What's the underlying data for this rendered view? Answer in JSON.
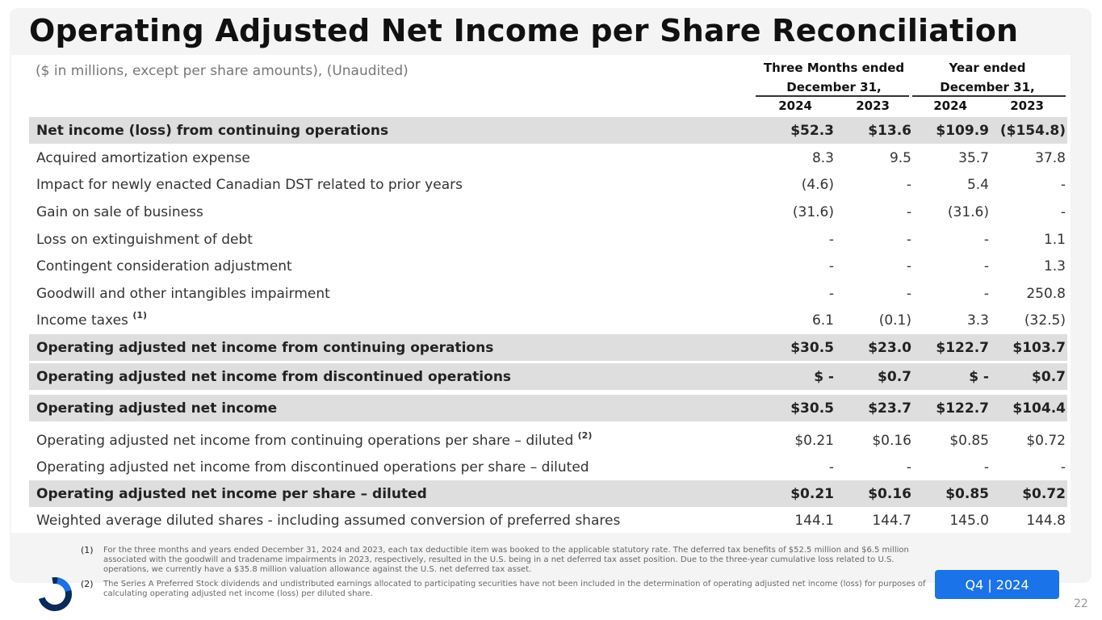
{
  "slide": {
    "title": "Operating Adjusted Net Income per Share Reconciliation",
    "subtitle": "($ in millions, except per share amounts), (Unaudited)",
    "badge": "Q4 | 2024",
    "page_number": "22"
  },
  "table": {
    "group_headers": [
      {
        "line1": "Three Months ended",
        "line2": "December 31,"
      },
      {
        "line1": "Year ended",
        "line2": "December 31,"
      }
    ],
    "years": [
      "2024",
      "2023",
      "2024",
      "2023"
    ],
    "rows": [
      {
        "label": "Net income (loss) from continuing operations",
        "sup": "",
        "values": [
          "$52.3",
          "$13.6",
          "$109.9",
          "($154.8)"
        ],
        "highlight": true
      },
      {
        "label": "Acquired amortization expense",
        "sup": "",
        "values": [
          "8.3",
          "9.5",
          "35.7",
          "37.8"
        ],
        "highlight": false
      },
      {
        "label": "Impact for newly enacted Canadian DST related to prior years",
        "sup": "",
        "values": [
          "(4.6)",
          "-",
          "5.4",
          "-"
        ],
        "highlight": false
      },
      {
        "label": "Gain on sale of business",
        "sup": "",
        "values": [
          "(31.6)",
          "-",
          "(31.6)",
          "-"
        ],
        "highlight": false
      },
      {
        "label": "Loss on extinguishment of debt",
        "sup": "",
        "values": [
          "-",
          "-",
          "-",
          "1.1"
        ],
        "highlight": false
      },
      {
        "label": "Contingent consideration adjustment",
        "sup": "",
        "values": [
          "-",
          "-",
          "-",
          "1.3"
        ],
        "highlight": false
      },
      {
        "label": "Goodwill and other intangibles impairment",
        "sup": "",
        "values": [
          "-",
          "-",
          "-",
          "250.8"
        ],
        "highlight": false
      },
      {
        "label": "Income taxes",
        "sup": "(1)",
        "values": [
          "6.1",
          "(0.1)",
          "3.3",
          "(32.5)"
        ],
        "highlight": false
      },
      {
        "label": "Operating adjusted net income from continuing operations",
        "sup": "",
        "values": [
          "$30.5",
          "$23.0",
          "$122.7",
          "$103.7"
        ],
        "highlight": true
      },
      {
        "label": "Operating adjusted net income from discontinued operations",
        "sup": "",
        "values": [
          "$ -",
          "$0.7",
          "$ -",
          "$0.7"
        ],
        "highlight": true
      },
      {
        "label": "Operating adjusted net income",
        "sup": "",
        "values": [
          "$30.5",
          "$23.7",
          "$122.7",
          "$104.4"
        ],
        "highlight": true
      },
      {
        "label": "Operating adjusted net income from continuing operations per share – diluted",
        "sup": "(2)",
        "values": [
          "$0.21",
          "$0.16",
          "$0.85",
          "$0.72"
        ],
        "highlight": false
      },
      {
        "label": "Operating adjusted net income from discontinued operations per share – diluted",
        "sup": "",
        "values": [
          "-",
          "-",
          "-",
          "-"
        ],
        "highlight": false
      },
      {
        "label": "Operating adjusted net income per share – diluted",
        "sup": "",
        "values": [
          "$0.21",
          "$0.16",
          "$0.85",
          "$0.72"
        ],
        "highlight": true
      },
      {
        "label": "Weighted average diluted shares - including assumed conversion of preferred shares",
        "sup": "",
        "values": [
          "144.1",
          "144.7",
          "145.0",
          "144.8"
        ],
        "highlight": false
      }
    ]
  },
  "footnotes": [
    {
      "num": "(1)",
      "text": "For the three months and years ended December 31, 2024 and 2023, each tax deductible item was booked to the applicable statutory rate. The deferred tax benefits of $52.5 million and $6.5 million associated with the goodwill and tradename impairments in 2023, respectively, resulted in the U.S. being in a net deferred tax asset position. Due to the three-year cumulative loss related to U.S. operations, we currently have a $35.8 million valuation allowance against the U.S. net deferred tax asset."
    },
    {
      "num": "(2)",
      "text": "The Series A Preferred Stock dividends and undistributed earnings allocated to participating securities have not been included in the determination of operating adjusted net income (loss) for purposes of calculating operating adjusted net income (loss) per diluted share."
    }
  ],
  "colors": {
    "accent": "#1a73e8",
    "row_highlight": "#dedede",
    "logo_dark": "#0b2a5c"
  }
}
